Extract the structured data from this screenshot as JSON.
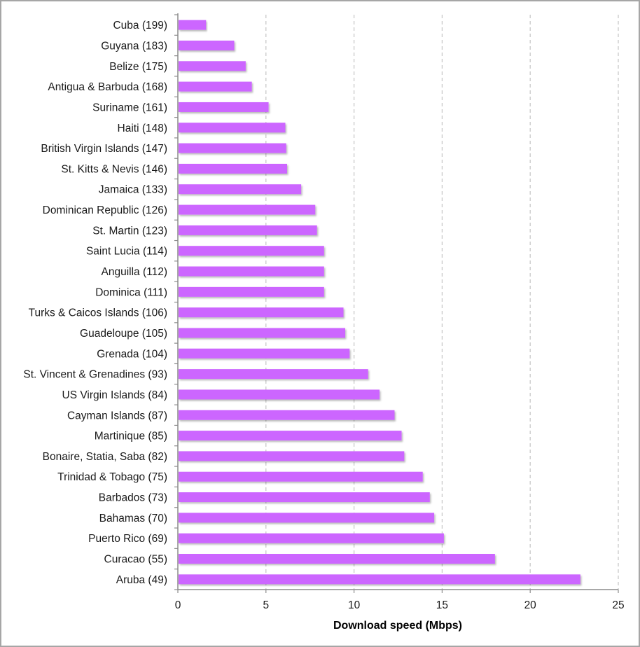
{
  "chart_data": {
    "type": "bar",
    "orientation": "horizontal",
    "title": "",
    "xlabel": "Download speed (Mbps)",
    "ylabel": "",
    "xlim": [
      0,
      25
    ],
    "xticks": [
      0,
      5,
      10,
      15,
      20,
      25
    ],
    "xtick_labels": [
      "0",
      "5",
      "10",
      "15",
      "20",
      "25"
    ],
    "grid": "vertical dashed",
    "bar_color": "#cc66ff",
    "categories": [
      "Cuba (199)",
      "Guyana (183)",
      "Belize (175)",
      "Antigua & Barbuda (168)",
      "Suriname (161)",
      "Haiti (148)",
      "British Virgin Islands (147)",
      "St. Kitts & Nevis (146)",
      "Jamaica (133)",
      "Dominican Republic (126)",
      "St. Martin (123)",
      "Saint Lucia (114)",
      "Anguilla (112)",
      "Dominica (111)",
      "Turks & Caicos Islands (106)",
      "Guadeloupe (105)",
      "Grenada (104)",
      "St. Vincent & Grenadines (93)",
      "US Virgin Islands (84)",
      "Cayman Islands (87)",
      "Martinique (85)",
      "Bonaire, Statia, Saba (82)",
      "Trinidad & Tobago (75)",
      "Barbados (73)",
      "Bahamas (70)",
      "Puerto Rico (69)",
      "Curacao (55)",
      "Aruba (49)"
    ],
    "values": [
      1.6,
      3.2,
      3.85,
      4.2,
      5.15,
      6.1,
      6.15,
      6.2,
      7.0,
      7.8,
      7.9,
      8.3,
      8.3,
      8.3,
      9.4,
      9.5,
      9.75,
      10.8,
      11.45,
      12.3,
      12.7,
      12.85,
      13.9,
      14.3,
      14.55,
      15.1,
      18.0,
      22.85
    ]
  }
}
